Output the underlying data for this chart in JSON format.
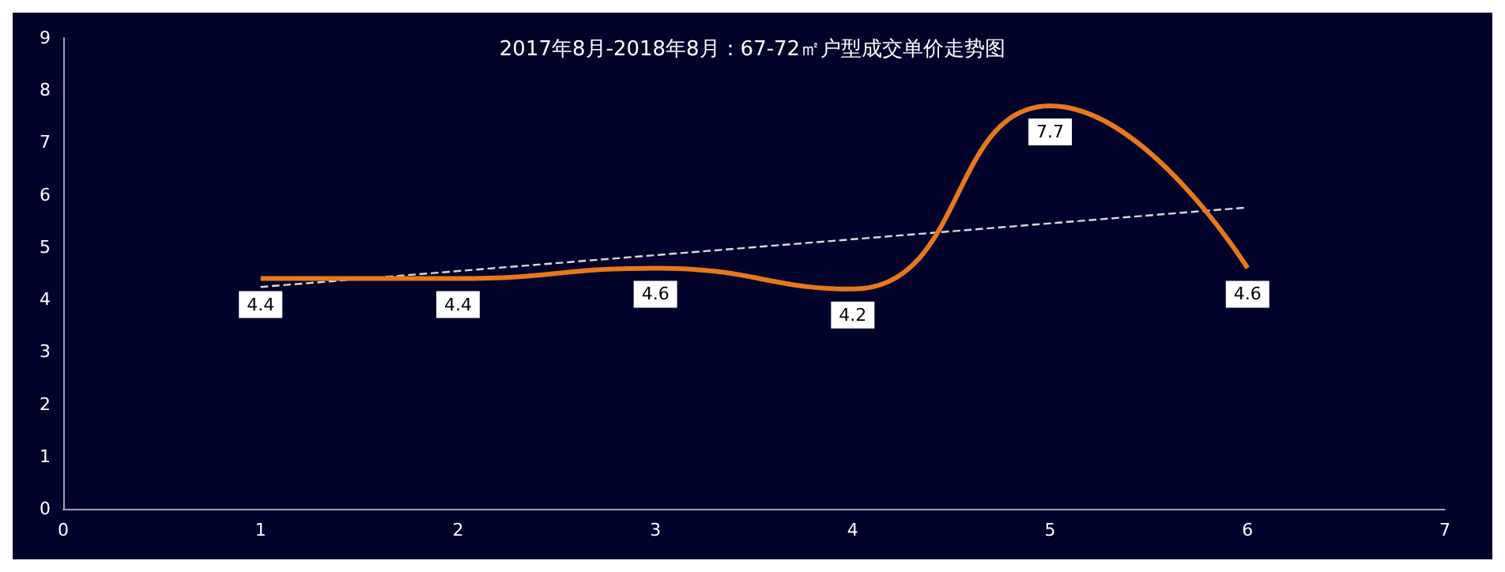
{
  "chart_data": {
    "type": "line",
    "title": "2017年8月-2018年8月：67-72㎡户型成交单价走势图",
    "x": [
      1,
      2,
      3,
      4,
      5,
      6
    ],
    "series": [
      {
        "color": "#e8781e",
        "values": [
          4.4,
          4.4,
          4.6,
          4.2,
          7.7,
          4.6
        ]
      },
      {
        "type": "line",
        "color": "#d9d9d9",
        "line_style": "dashed",
        "x": [
          1,
          6
        ],
        "values": [
          4.24,
          5.76
        ],
        "data_labels": false
      }
    ],
    "xlim": [
      0,
      7
    ],
    "xticks": [
      0,
      1,
      2,
      3,
      4,
      5,
      6,
      7
    ],
    "ylim": [
      0,
      9
    ],
    "yticks": [
      0,
      1,
      2,
      3,
      4,
      5,
      6,
      7,
      8,
      9
    ],
    "grid": false,
    "marker": "none",
    "data_labels": true,
    "line_style": "solid"
  }
}
